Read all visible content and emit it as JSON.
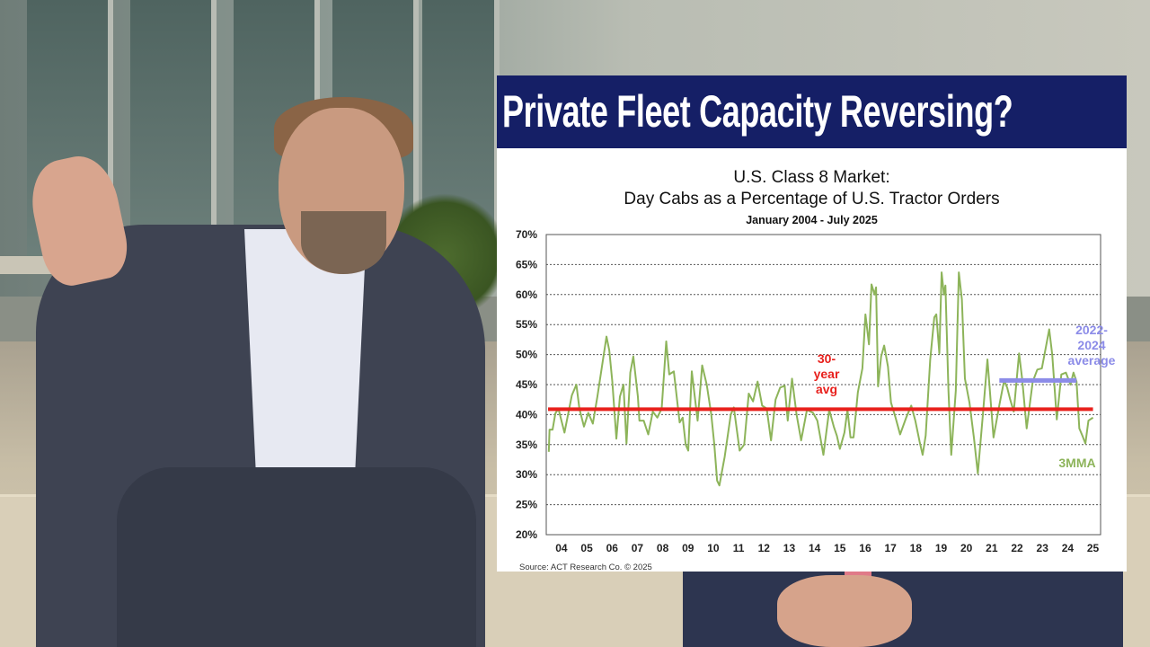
{
  "banner": {
    "title": "Private Fleet Capacity Reversing?"
  },
  "colors": {
    "banner": "#151f66",
    "series": "#8db45a",
    "avg_line": "#e8201c",
    "recent_avg": "#8c8ce8"
  },
  "chart_data": {
    "type": "line",
    "title": "U.S. Class 8 Market:",
    "subtitle": "Day Cabs as a Percentage of U.S. Tractor Orders",
    "date_range": "January 2004 - July 2025",
    "source": "Source: ACT Research Co. © 2025",
    "xlabel": "",
    "ylabel": "",
    "ylim": [
      20,
      70
    ],
    "xlim": [
      2003.9,
      2025.8
    ],
    "grid": "horizontal dashed",
    "yticks": [
      "20%",
      "25%",
      "30%",
      "35%",
      "40%",
      "45%",
      "50%",
      "55%",
      "60%",
      "65%",
      "70%"
    ],
    "xticks": [
      "04",
      "05",
      "06",
      "07",
      "08",
      "09",
      "10",
      "11",
      "12",
      "13",
      "14",
      "15",
      "16",
      "17",
      "18",
      "19",
      "20",
      "21",
      "22",
      "23",
      "24",
      "25"
    ],
    "series": [
      {
        "name": "3MMA",
        "x": [
          2004.0,
          2004.03,
          2004.15,
          2004.26,
          2004.38,
          2004.62,
          2004.91,
          2005.09,
          2005.21,
          2005.39,
          2005.56,
          2005.74,
          2005.92,
          2006.28,
          2006.39,
          2006.51,
          2006.67,
          2006.81,
          2006.95,
          2007.07,
          2007.22,
          2007.34,
          2007.52,
          2007.58,
          2007.75,
          2007.93,
          2008.11,
          2008.29,
          2008.46,
          2008.64,
          2008.76,
          2008.94,
          2009.17,
          2009.29,
          2009.41,
          2009.51,
          2009.65,
          2009.88,
          2010.06,
          2010.24,
          2010.42,
          2010.54,
          2010.65,
          2010.74,
          2010.95,
          2011.19,
          2011.31,
          2011.54,
          2011.72,
          2011.9,
          2012.07,
          2012.25,
          2012.43,
          2012.61,
          2012.78,
          2012.96,
          2013.14,
          2013.32,
          2013.44,
          2013.61,
          2013.79,
          2013.97,
          2014.2,
          2014.44,
          2014.61,
          2014.85,
          2015.08,
          2015.26,
          2015.38,
          2015.5,
          2015.68,
          2015.8,
          2015.92,
          2016.04,
          2016.21,
          2016.39,
          2016.51,
          2016.65,
          2016.75,
          2016.87,
          2016.93,
          2017.01,
          2017.13,
          2017.25,
          2017.4,
          2017.52,
          2017.7,
          2017.88,
          2018.12,
          2018.32,
          2018.48,
          2018.65,
          2018.77,
          2018.89,
          2019.07,
          2019.23,
          2019.31,
          2019.43,
          2019.52,
          2019.61,
          2019.67,
          2019.79,
          2019.9,
          2020.08,
          2020.2,
          2020.32,
          2020.44,
          2020.62,
          2020.8,
          2020.95,
          2021.15,
          2021.33,
          2021.57,
          2021.81,
          2021.99,
          2022.11,
          2022.23,
          2022.37,
          2022.58,
          2022.7,
          2022.88,
          2023.12,
          2023.3,
          2023.48,
          2023.65,
          2023.77,
          2023.89,
          2024.07,
          2024.25,
          2024.43,
          2024.61,
          2024.73,
          2024.85,
          2024.96,
          2025.08,
          2025.2,
          2025.32,
          2025.5
        ],
        "values": [
          33.8,
          37.5,
          37.5,
          40.2,
          41,
          37,
          43.2,
          45,
          41,
          38,
          40.3,
          38.5,
          43,
          53,
          50.7,
          45.5,
          36,
          43,
          45,
          35.2,
          47,
          49.7,
          43,
          39,
          39,
          36.7,
          40.5,
          39.5,
          41,
          52.2,
          46.7,
          47.2,
          38.7,
          39.5,
          35,
          34,
          47.2,
          39,
          48.2,
          45,
          40,
          35,
          29,
          28.2,
          33,
          40,
          41.2,
          34,
          35,
          43.5,
          42.2,
          45.5,
          41.5,
          41,
          35.7,
          42.5,
          44.5,
          44.8,
          39,
          46,
          40,
          35.7,
          40.8,
          40.3,
          39,
          33.3,
          40.8,
          38,
          36.5,
          34.3,
          37,
          40.8,
          36.2,
          36.2,
          43.7,
          47.7,
          56.7,
          51.7,
          61.7,
          60,
          61.2,
          44.7,
          49.7,
          51.5,
          48,
          42,
          39.5,
          36.7,
          39.5,
          41.5,
          39,
          35.5,
          33.3,
          36.5,
          49.2,
          56.2,
          56.7,
          50.2,
          63.7,
          60,
          61.5,
          44,
          33.3,
          44,
          63.7,
          59.2,
          46,
          42,
          36,
          30.2,
          40,
          49.2,
          36.2,
          41.8,
          45.7,
          44.5,
          42.5,
          40.5,
          50.2,
          46,
          37.7,
          45.5,
          47.5,
          47.7,
          51.5,
          54.2,
          50,
          39.2,
          46.7,
          47,
          45,
          47,
          45.5,
          37.7,
          36.5,
          35.2,
          39,
          39.5
        ]
      }
    ],
    "reference_lines": [
      {
        "label": [
          "30-",
          "year",
          "avg"
        ],
        "value": 40.9,
        "x_range": [
          2003.9,
          2025.5
        ]
      },
      {
        "label": [
          "2022-",
          "2024",
          "average"
        ],
        "value": 45.7,
        "x_range": [
          2021.8,
          2024.85
        ]
      }
    ]
  }
}
